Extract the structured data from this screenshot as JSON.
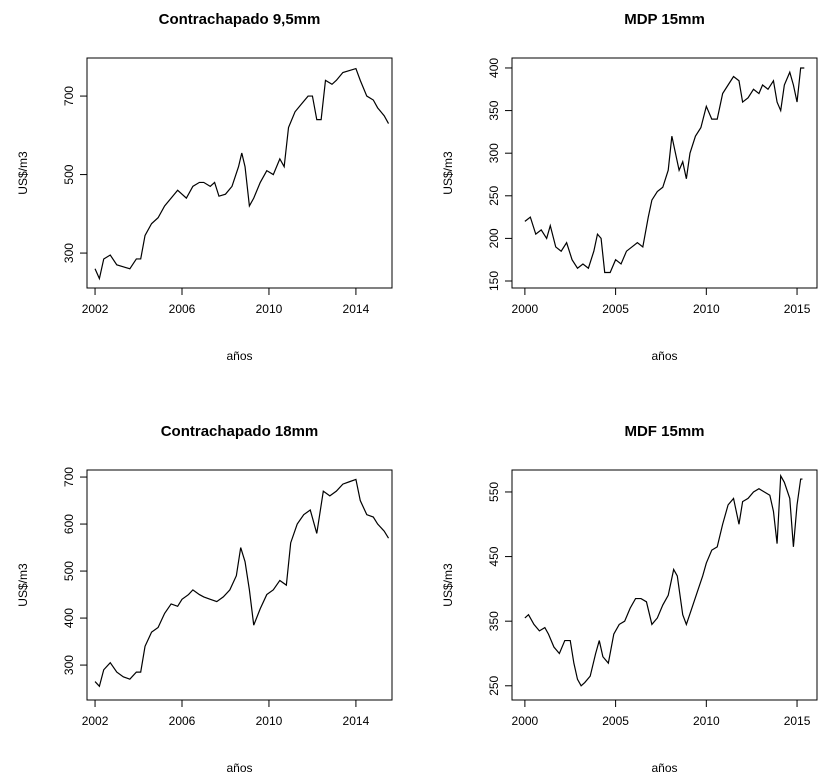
{
  "chart_data": [
    {
      "type": "line",
      "title": "Contrachapado 9,5mm",
      "xlabel": "años",
      "ylabel": "US$/m3",
      "color": "#000000",
      "x": [
        2002,
        2002.2,
        2002.4,
        2002.7,
        2003,
        2003.3,
        2003.6,
        2003.9,
        2004.1,
        2004.3,
        2004.6,
        2004.9,
        2005.2,
        2005.5,
        2005.8,
        2006,
        2006.2,
        2006.5,
        2006.8,
        2007,
        2007.3,
        2007.5,
        2007.7,
        2008,
        2008.3,
        2008.6,
        2008.75,
        2008.9,
        2009.1,
        2009.3,
        2009.6,
        2009.9,
        2010.2,
        2010.5,
        2010.7,
        2010.9,
        2011.2,
        2011.5,
        2011.8,
        2012,
        2012.2,
        2012.4,
        2012.6,
        2012.9,
        2013.1,
        2013.4,
        2013.7,
        2014,
        2014.2,
        2014.5,
        2014.8,
        2015,
        2015.3,
        2015.5
      ],
      "values": [
        260,
        235,
        285,
        295,
        270,
        265,
        260,
        285,
        285,
        345,
        375,
        390,
        420,
        440,
        460,
        450,
        440,
        470,
        480,
        480,
        470,
        480,
        445,
        450,
        470,
        520,
        555,
        520,
        420,
        440,
        480,
        510,
        500,
        540,
        520,
        620,
        660,
        680,
        700,
        700,
        640,
        640,
        740,
        730,
        740,
        760,
        765,
        770,
        740,
        700,
        690,
        670,
        650,
        630
      ],
      "xlim": [
        2001.63,
        2015.66
      ],
      "ylim": [
        211,
        797
      ],
      "xticks": [
        2002,
        2006,
        2010,
        2014
      ],
      "yticks": [
        300,
        500,
        700
      ]
    },
    {
      "type": "line",
      "title": "MDP 15mm",
      "xlabel": "años",
      "ylabel": "US$/m3",
      "color": "#000000",
      "x": [
        2000,
        2000.3,
        2000.6,
        2000.9,
        2001.2,
        2001.4,
        2001.7,
        2002,
        2002.3,
        2002.6,
        2002.9,
        2003.2,
        2003.5,
        2003.8,
        2004,
        2004.2,
        2004.4,
        2004.7,
        2005,
        2005.3,
        2005.6,
        2005.9,
        2006.2,
        2006.5,
        2006.8,
        2007,
        2007.3,
        2007.6,
        2007.9,
        2008.1,
        2008.3,
        2008.5,
        2008.7,
        2008.9,
        2009.1,
        2009.4,
        2009.7,
        2010,
        2010.3,
        2010.6,
        2010.9,
        2011.2,
        2011.5,
        2011.8,
        2012,
        2012.3,
        2012.6,
        2012.9,
        2013.1,
        2013.4,
        2013.7,
        2013.9,
        2014.1,
        2014.3,
        2014.6,
        2014.8,
        2015,
        2015.2,
        2015.4
      ],
      "values": [
        220,
        225,
        205,
        210,
        200,
        215,
        190,
        185,
        195,
        175,
        165,
        170,
        165,
        185,
        205,
        200,
        160,
        160,
        175,
        170,
        185,
        190,
        195,
        190,
        225,
        245,
        255,
        260,
        280,
        320,
        300,
        280,
        290,
        270,
        300,
        320,
        330,
        355,
        340,
        340,
        370,
        380,
        390,
        385,
        360,
        365,
        375,
        370,
        380,
        375,
        385,
        360,
        350,
        380,
        395,
        380,
        360,
        400,
        400
      ],
      "xlim": [
        1999.29,
        2016.1
      ],
      "ylim": [
        141.8,
        411.7
      ],
      "xticks": [
        2000,
        2005,
        2010,
        2015
      ],
      "yticks": [
        150,
        200,
        250,
        300,
        350,
        400
      ]
    },
    {
      "type": "line",
      "title": "Contrachapado 18mm",
      "xlabel": "años",
      "ylabel": "US$/m3",
      "color": "#000000",
      "x": [
        2002,
        2002.2,
        2002.4,
        2002.7,
        2003,
        2003.3,
        2003.6,
        2003.9,
        2004.1,
        2004.3,
        2004.6,
        2004.9,
        2005.2,
        2005.5,
        2005.8,
        2006,
        2006.3,
        2006.5,
        2006.8,
        2007,
        2007.3,
        2007.6,
        2007.9,
        2008.2,
        2008.5,
        2008.7,
        2008.9,
        2009.1,
        2009.3,
        2009.6,
        2009.9,
        2010.2,
        2010.5,
        2010.8,
        2011,
        2011.3,
        2011.6,
        2011.9,
        2012.2,
        2012.5,
        2012.8,
        2013.1,
        2013.4,
        2013.7,
        2014,
        2014.2,
        2014.5,
        2014.8,
        2015,
        2015.3,
        2015.5
      ],
      "values": [
        265,
        255,
        290,
        305,
        285,
        275,
        270,
        285,
        285,
        340,
        370,
        380,
        410,
        430,
        425,
        440,
        450,
        460,
        450,
        445,
        440,
        435,
        445,
        460,
        490,
        550,
        520,
        460,
        385,
        420,
        450,
        460,
        480,
        470,
        560,
        600,
        620,
        630,
        580,
        670,
        660,
        670,
        685,
        690,
        695,
        650,
        620,
        615,
        600,
        585,
        570
      ],
      "xlim": [
        2001.63,
        2015.66
      ],
      "ylim": [
        225.7,
        715
      ],
      "xticks": [
        2002,
        2006,
        2010,
        2014
      ],
      "yticks": [
        300,
        400,
        500,
        600,
        700
      ]
    },
    {
      "type": "line",
      "title": "MDF 15mm",
      "xlabel": "años",
      "ylabel": "US$/m3",
      "color": "#000000",
      "x": [
        2000,
        2000.2,
        2000.5,
        2000.8,
        2001.1,
        2001.3,
        2001.6,
        2001.9,
        2002.2,
        2002.5,
        2002.7,
        2002.9,
        2003.1,
        2003.3,
        2003.6,
        2003.9,
        2004.1,
        2004.3,
        2004.6,
        2004.9,
        2005.2,
        2005.5,
        2005.8,
        2006.1,
        2006.4,
        2006.7,
        2007,
        2007.3,
        2007.6,
        2007.9,
        2008.2,
        2008.4,
        2008.7,
        2008.9,
        2009.2,
        2009.5,
        2009.8,
        2010,
        2010.3,
        2010.6,
        2010.9,
        2011.2,
        2011.5,
        2011.8,
        2012,
        2012.3,
        2012.6,
        2012.9,
        2013.2,
        2013.5,
        2013.7,
        2013.9,
        2014.1,
        2014.3,
        2014.6,
        2014.8,
        2015,
        2015.2,
        2015.3
      ],
      "values": [
        355,
        360,
        345,
        335,
        340,
        330,
        310,
        300,
        320,
        320,
        285,
        260,
        250,
        255,
        265,
        300,
        320,
        295,
        285,
        330,
        345,
        350,
        370,
        385,
        385,
        380,
        345,
        355,
        375,
        390,
        430,
        420,
        360,
        345,
        370,
        395,
        420,
        440,
        460,
        465,
        500,
        530,
        540,
        500,
        535,
        540,
        550,
        555,
        550,
        545,
        520,
        470,
        575,
        565,
        540,
        465,
        530,
        570,
        570
      ],
      "xlim": [
        1999.29,
        2016.1
      ],
      "ylim": [
        228,
        584
      ],
      "xticks": [
        2000,
        2005,
        2010,
        2015
      ],
      "yticks": [
        250,
        350,
        450,
        550
      ]
    }
  ]
}
